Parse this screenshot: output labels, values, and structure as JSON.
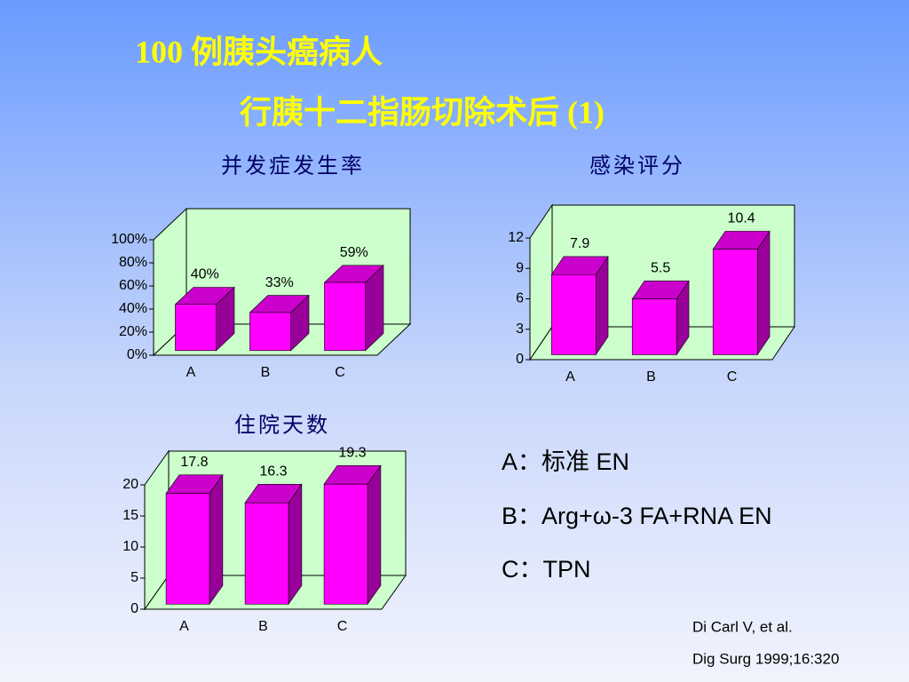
{
  "title": [
    "100 例胰头癌病人",
    "行胰十二指肠切除术后 (1)"
  ],
  "chart_data": [
    {
      "type": "bar3d",
      "title": "并发症发生率",
      "categories": [
        "A",
        "B",
        "C"
      ],
      "values": [
        40,
        33,
        59
      ],
      "value_labels": [
        "40%",
        "33%",
        "59%"
      ],
      "color": "#ff00ff",
      "wall_color": "#ccffcc",
      "ylim": [
        0,
        100
      ],
      "yticks": [
        {
          "value": 0,
          "label": "0%"
        },
        {
          "value": 20,
          "label": "20%"
        },
        {
          "value": 40,
          "label": "40%"
        },
        {
          "value": 60,
          "label": "60%"
        },
        {
          "value": 80,
          "label": "80%"
        },
        {
          "value": 100,
          "label": "100%"
        }
      ]
    },
    {
      "type": "bar3d",
      "title": "感染评分",
      "categories": [
        "A",
        "B",
        "C"
      ],
      "values": [
        7.9,
        5.5,
        10.4
      ],
      "color": "#ff00ff",
      "wall_color": "#ccffcc",
      "ylim": [
        0,
        12
      ],
      "yticks": [
        0,
        3,
        6,
        9,
        12
      ]
    },
    {
      "type": "bar3d",
      "title": "住院天数",
      "categories": [
        "A",
        "B",
        "C"
      ],
      "values": [
        17.8,
        16.3,
        19.3
      ],
      "color": "#ff00ff",
      "wall_color": "#ccffcc",
      "ylim": [
        0,
        20
      ],
      "yticks": [
        0,
        5,
        10,
        15,
        20
      ]
    }
  ],
  "notes": [
    "A：标准 EN",
    "B：Arg+ω-3 FA+RNA EN",
    "C：TPN"
  ],
  "citation": [
    "Di Carl V, et al.",
    "Dig Surg 1999;16:320"
  ]
}
